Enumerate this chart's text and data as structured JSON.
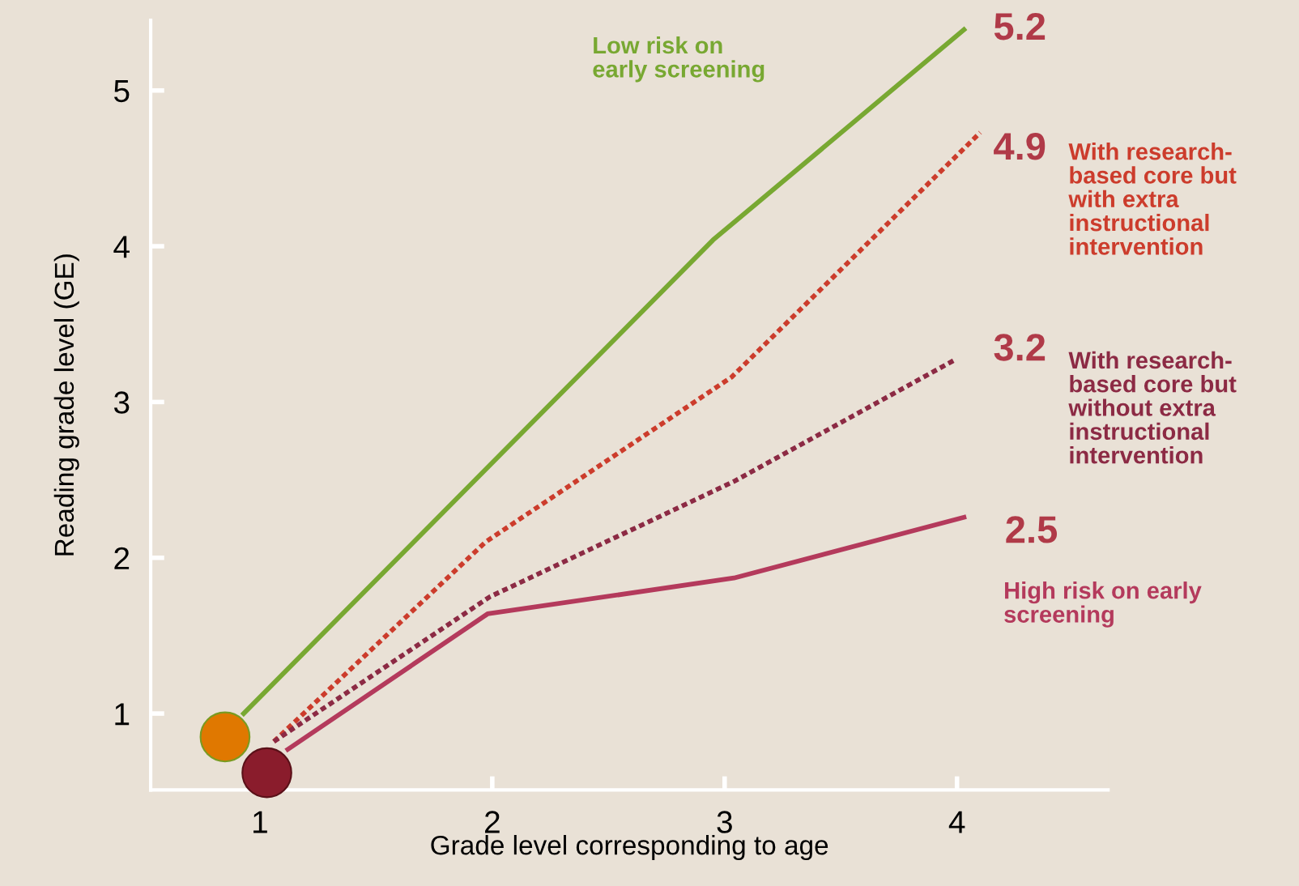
{
  "chart_data": {
    "type": "line",
    "xlabel": "Grade level corresponding to age",
    "ylabel": "Reading grade level (GE)",
    "xlim": [
      0.53,
      4.65
    ],
    "ylim": [
      0.51,
      5.45
    ],
    "xticks": [
      1,
      2,
      3,
      4
    ],
    "yticks": [
      1,
      2,
      3,
      4,
      5
    ],
    "grid": false,
    "legend": false,
    "series": [
      {
        "name": "Low risk on\nearly screening",
        "color": "#78a832",
        "line_style": "solid",
        "x": [
          0.93,
          2.95,
          4.03
        ],
        "values": [
          1.0,
          4.04,
          5.39
        ]
      },
      {
        "name": "With research-\nbased core but\nwith extra\ninstructional\nintervention",
        "color": "#cc3c2c",
        "line_style": "dotted",
        "x": [
          1.06,
          1.97,
          3.03,
          4.1
        ],
        "values": [
          0.82,
          2.1,
          3.16,
          4.73
        ]
      },
      {
        "name": "With research-\nbased core but\nwithout extra\ninstructional\nintervention",
        "color": "#8c2a44",
        "line_style": "dotted",
        "x": [
          1.06,
          1.99,
          3.04,
          3.99
        ],
        "values": [
          0.82,
          1.75,
          2.49,
          3.27
        ]
      },
      {
        "name": "High risk on early\nscreening",
        "color": "#b43a5c",
        "line_style": "solid",
        "x": [
          1.12,
          1.98,
          3.04,
          4.03
        ],
        "values": [
          0.77,
          1.64,
          1.87,
          2.26
        ]
      },
      {
        "type": "scatter",
        "marker": "circle",
        "x": [
          0.85,
          1.03
        ],
        "values": [
          0.85,
          0.62
        ],
        "colors": [
          "#e07800",
          "#8a1c2c"
        ]
      }
    ],
    "annotations": [
      "5.2",
      "4.9",
      "3.2",
      "2.5"
    ]
  }
}
